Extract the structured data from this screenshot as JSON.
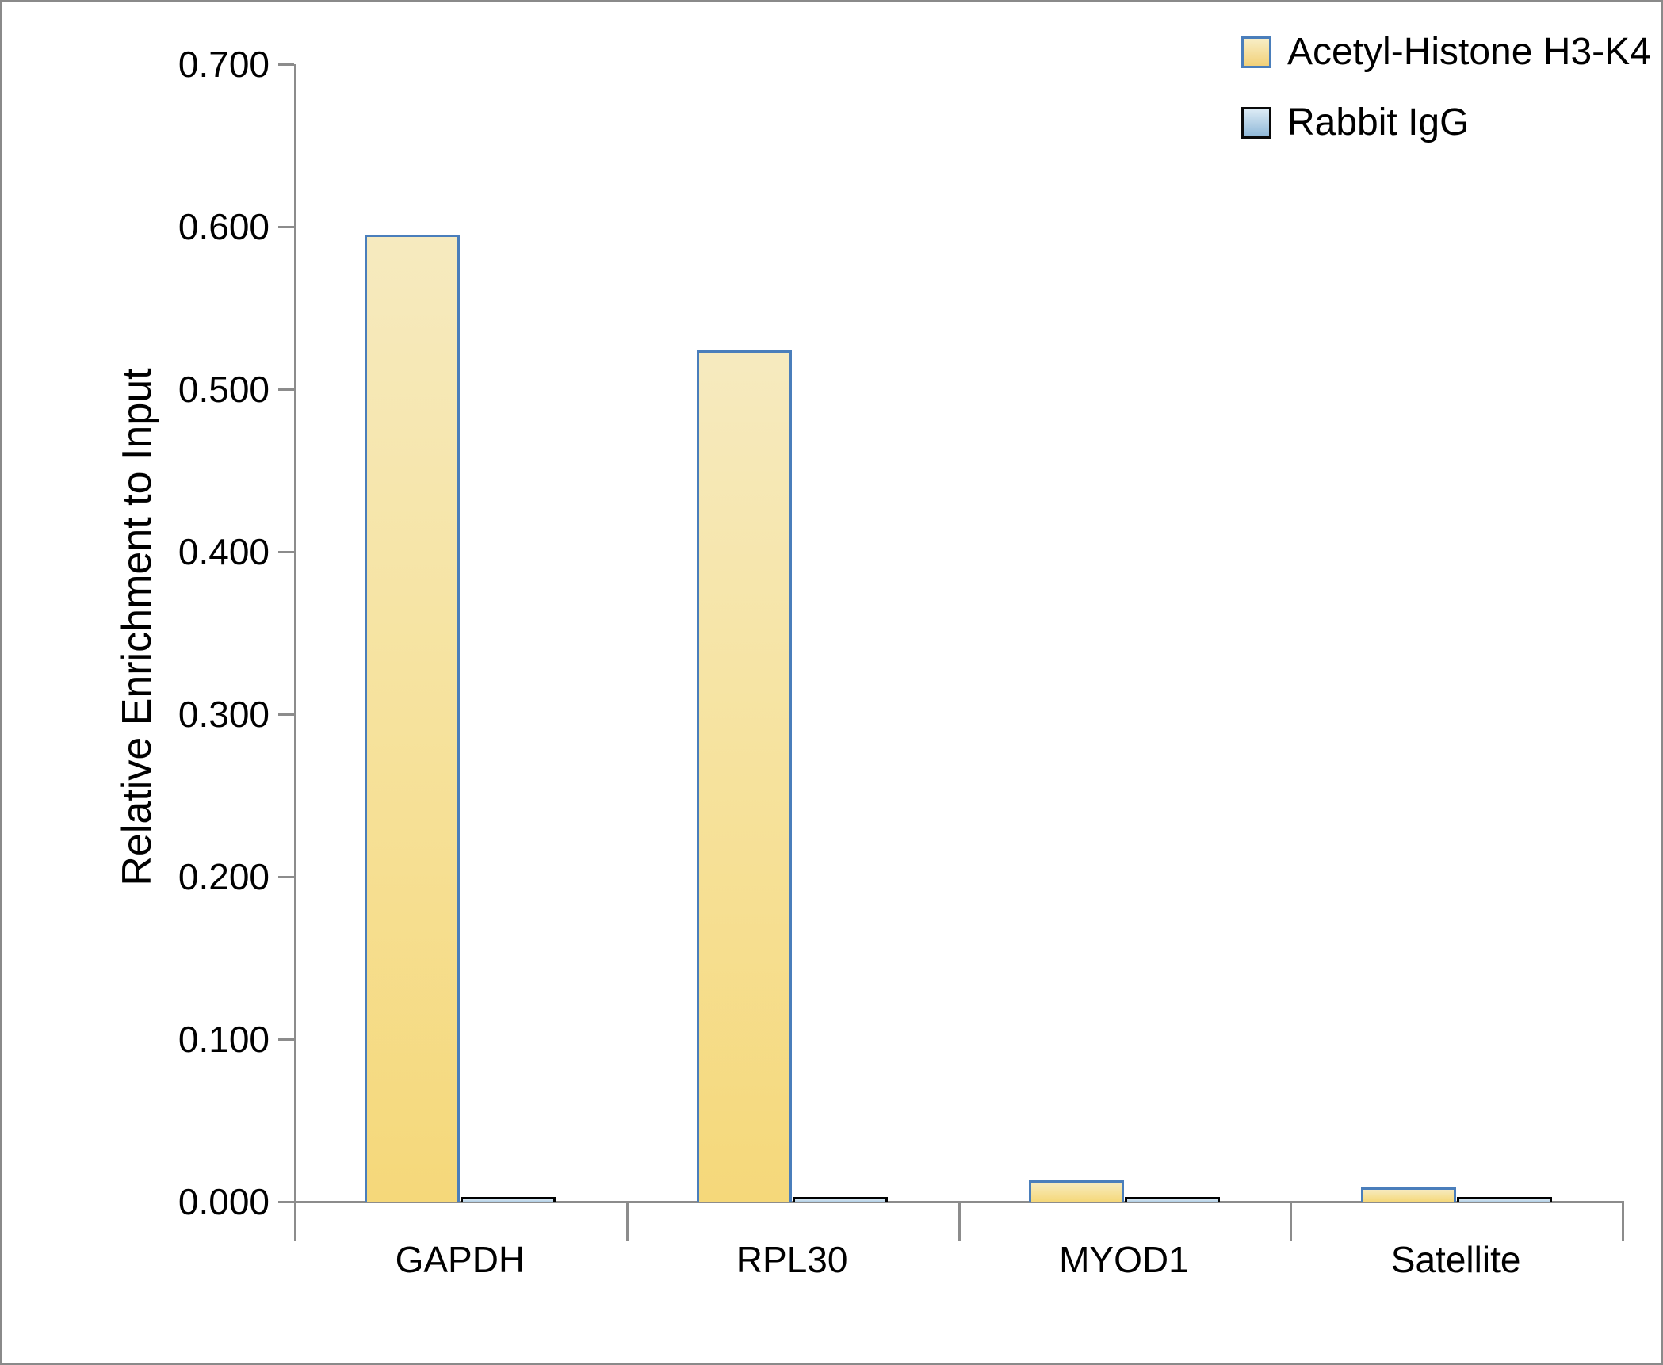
{
  "chart_data": {
    "type": "bar",
    "title": "",
    "xlabel": "",
    "ylabel": "Relative Enrichment to Input",
    "categories": [
      "GAPDH",
      "RPL30",
      "MYOD1",
      "Satellite"
    ],
    "series": [
      {
        "name": "Acetyl-Histone H3-K4",
        "values": [
          0.595,
          0.524,
          0.013,
          0.009
        ],
        "fill_top": "#f6eabf",
        "fill_bottom": "#f5d87a",
        "border_color": "#4a7ebb"
      },
      {
        "name": "Rabbit IgG",
        "values": [
          0.002,
          0.002,
          0.002,
          0.002
        ],
        "fill_top": "#d9e8f3",
        "fill_bottom": "#aecde4",
        "border_color": "#000000"
      }
    ],
    "ylim": [
      0,
      0.7
    ],
    "ytick_step": 0.1,
    "ytick_labels": [
      "0.000",
      "0.100",
      "0.200",
      "0.300",
      "0.400",
      "0.500",
      "0.600",
      "0.700"
    ],
    "grid": false,
    "legend_position": "top-right",
    "axis_color": "#8c8c8c",
    "text_color": "#000000",
    "background_color": "#ffffff"
  }
}
